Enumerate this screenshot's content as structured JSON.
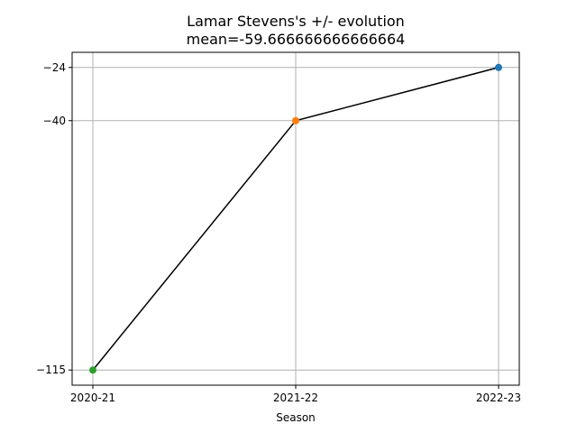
{
  "chart_data": {
    "type": "line",
    "title": "Lamar Stevens's +/- evolution",
    "subtitle": "mean=-59.666666666666664",
    "xlabel": "Season",
    "ylabel": "",
    "categories": [
      "2020-21",
      "2021-22",
      "2022-23"
    ],
    "values": [
      -115,
      -40,
      -24
    ],
    "point_colors": [
      "#2ca02c",
      "#ff7f0e",
      "#1f77b4"
    ],
    "line_color": "#000000",
    "yticks": [
      -115,
      -40,
      -24
    ],
    "ytick_labels": [
      "−115",
      "−40",
      "−24"
    ],
    "ylim": [
      -119.55,
      -19.45
    ],
    "grid": true,
    "legend": "none"
  }
}
